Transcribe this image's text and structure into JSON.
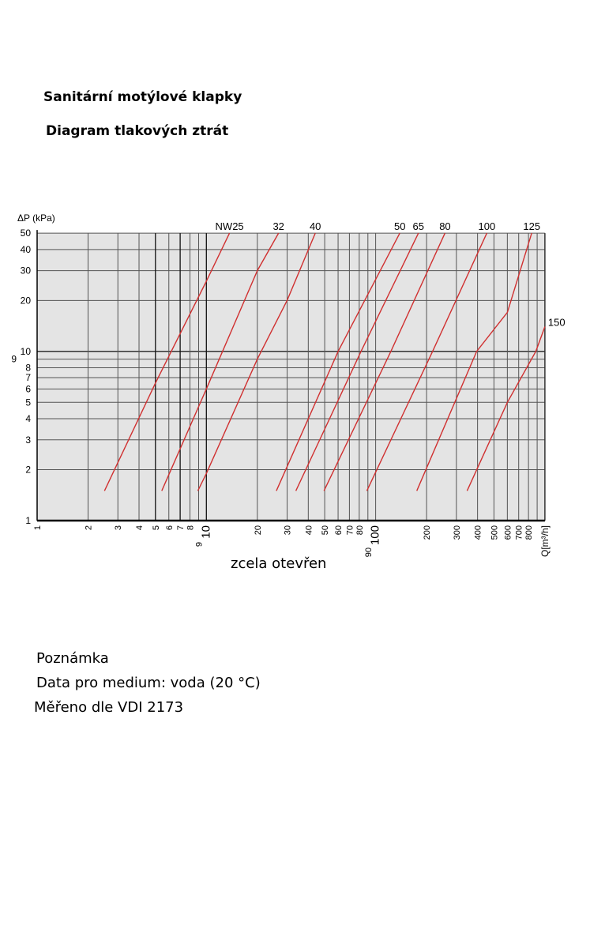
{
  "header": {
    "title": "Sanitární motýlové klapky",
    "subtitle": "Diagram tlakových ztrát"
  },
  "notes": {
    "heading": "Poznámka",
    "line1": "Data pro medium: voda (20 °C)",
    "line2": "Měřeno dle VDI 2173"
  },
  "chart_data": {
    "type": "line",
    "title": "",
    "xlabel": "Q[m³/h]",
    "ylabel": "ΔP (kPa)",
    "caption": "zcela otevřen",
    "x_scale": "log",
    "y_scale": "log",
    "xlim": [
      1,
      1000
    ],
    "ylim": [
      1,
      50
    ],
    "grid": true,
    "x_ticks": [
      1,
      2,
      3,
      4,
      5,
      6,
      7,
      8,
      9,
      10,
      20,
      30,
      40,
      50,
      60,
      70,
      80,
      90,
      100,
      200,
      300,
      400,
      500,
      600,
      700,
      800
    ],
    "y_ticks": [
      1,
      2,
      3,
      4,
      5,
      6,
      7,
      8,
      9,
      10,
      20,
      30,
      40,
      50
    ],
    "colors": {
      "series": "#d03030",
      "plot_bg": "#e4e4e4",
      "grid": "#555555"
    },
    "series": [
      {
        "name": "NW25",
        "points": [
          [
            2.5,
            1.5
          ],
          [
            5,
            6.5
          ],
          [
            10,
            26
          ],
          [
            13.7,
            50
          ]
        ]
      },
      {
        "name": "32",
        "points": [
          [
            5.45,
            1.5
          ],
          [
            10,
            6
          ],
          [
            20,
            30
          ],
          [
            26.7,
            50
          ]
        ]
      },
      {
        "name": "40",
        "points": [
          [
            8.9,
            1.5
          ],
          [
            10,
            1.9
          ],
          [
            20,
            9
          ],
          [
            30,
            20
          ],
          [
            44,
            50
          ]
        ]
      },
      {
        "name": "50",
        "points": [
          [
            25.9,
            1.5
          ],
          [
            60,
            10
          ],
          [
            139,
            50
          ]
        ]
      },
      {
        "name": "65",
        "points": [
          [
            33.8,
            1.5
          ],
          [
            82,
            10
          ],
          [
            179,
            50
          ]
        ]
      },
      {
        "name": "80",
        "points": [
          [
            49.5,
            1.5
          ],
          [
            123,
            10
          ],
          [
            257,
            50
          ]
        ]
      },
      {
        "name": "100",
        "points": [
          [
            88.8,
            1.5
          ],
          [
            217,
            10
          ],
          [
            454,
            50
          ]
        ]
      },
      {
        "name": "125",
        "points": [
          [
            175,
            1.5
          ],
          [
            395,
            10
          ],
          [
            600,
            17
          ],
          [
            836,
            50
          ]
        ]
      },
      {
        "name": "150",
        "points": [
          [
            347,
            1.5
          ],
          [
            600,
            5
          ],
          [
            884,
            10
          ],
          [
            1000,
            14
          ]
        ]
      }
    ]
  }
}
